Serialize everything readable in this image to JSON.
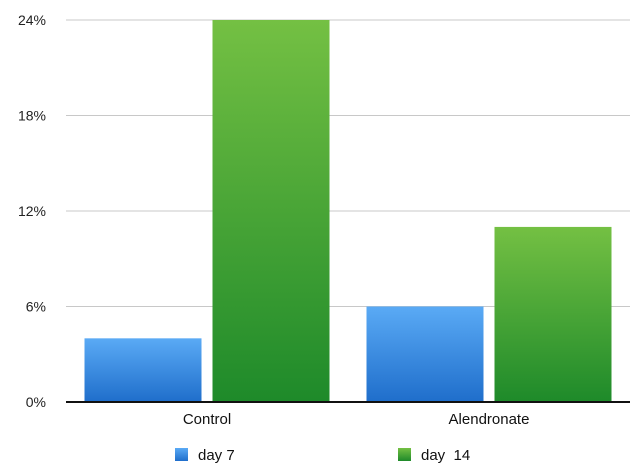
{
  "chart_data": {
    "type": "bar",
    "categories": [
      "Control",
      "Alendronate"
    ],
    "series": [
      {
        "name": "day 7",
        "values": [
          4,
          6
        ],
        "color_top": "#5aaaf5",
        "color_bottom": "#1f6ecb"
      },
      {
        "name": "day  14",
        "values": [
          24,
          11
        ],
        "color_top": "#74c043",
        "color_bottom": "#1e8a2a"
      }
    ],
    "ylim": [
      0,
      24
    ],
    "yticks": [
      {
        "value": 0,
        "label": "0%"
      },
      {
        "value": 6,
        "label": "6%"
      },
      {
        "value": 12,
        "label": "12%"
      },
      {
        "value": 18,
        "label": "18%"
      },
      {
        "value": 24,
        "label": "24%"
      }
    ],
    "grid": true,
    "legend_position": "bottom",
    "title": "",
    "xlabel": "",
    "ylabel": ""
  }
}
